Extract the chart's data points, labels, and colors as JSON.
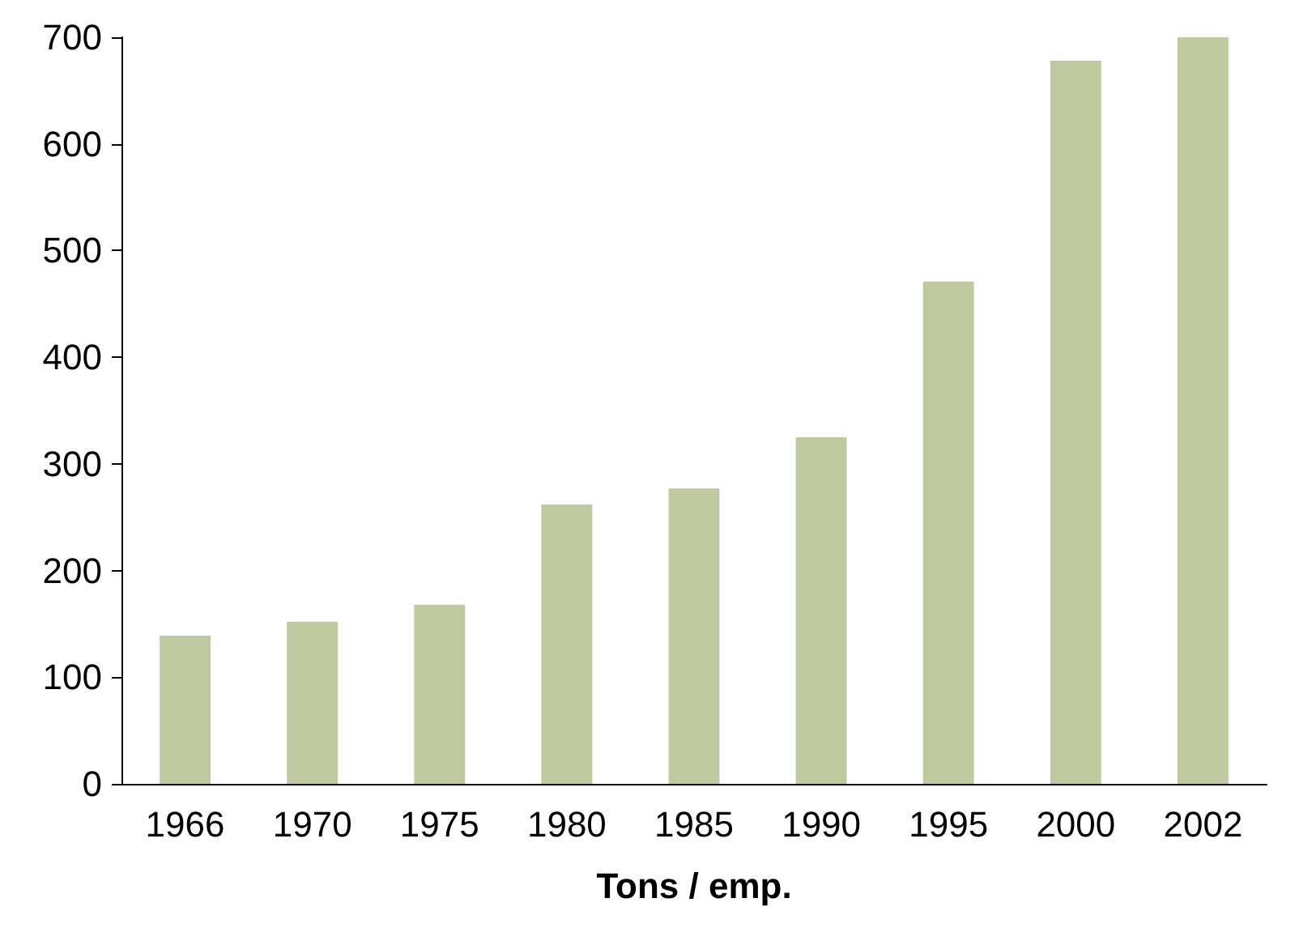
{
  "chart_data": {
    "type": "bar",
    "xlabel": "Tons / emp.",
    "categories": [
      "1966",
      "1970",
      "1975",
      "1980",
      "1985",
      "1990",
      "1995",
      "2000",
      "2002"
    ],
    "values": [
      139,
      152,
      168,
      262,
      277,
      325,
      471,
      678,
      700
    ],
    "color": "#bec9a0",
    "ylim": [
      0,
      700
    ],
    "yticks": [
      0,
      100,
      200,
      300,
      400,
      500,
      600,
      700
    ]
  }
}
